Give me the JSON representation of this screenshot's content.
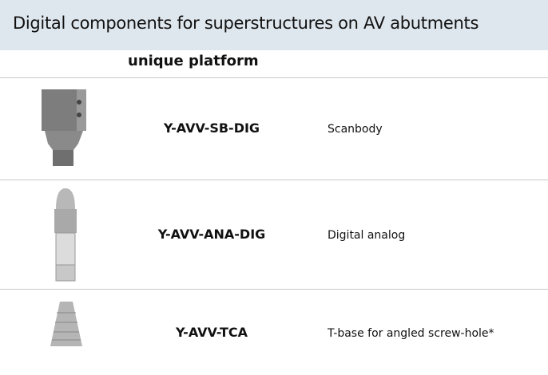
{
  "header": {
    "title": "Digital components for superstructures on AV abutments"
  },
  "table": {
    "column_header": "unique platform",
    "rows": [
      {
        "code": "Y-AVV-SB-DIG",
        "description": "Scanbody"
      },
      {
        "code": "Y-AVV-ANA-DIG",
        "description": "Digital analog"
      },
      {
        "code": "Y-AVV-TCA",
        "description": "T-base for angled screw-hole*"
      }
    ]
  }
}
